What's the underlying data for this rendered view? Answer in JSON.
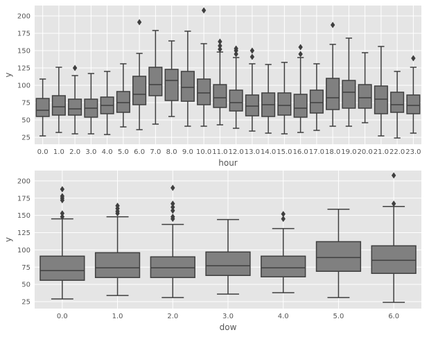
{
  "chart_data": [
    {
      "type": "box",
      "xlabel": "hour",
      "ylabel": "y",
      "ylim": [
        15,
        215
      ],
      "yticks": [
        25,
        50,
        75,
        100,
        125,
        150,
        175,
        200
      ],
      "grid": true,
      "box_color": "#808080",
      "line_color": "#3f3f3f",
      "categories": [
        "0.0",
        "1.0",
        "2.0",
        "3.0",
        "4.0",
        "5.0",
        "6.0",
        "7.0",
        "8.0",
        "9.0",
        "10.0",
        "11.0",
        "12.0",
        "13.0",
        "14.0",
        "15.0",
        "16.0",
        "17.0",
        "18.0",
        "19.0",
        "20.0",
        "21.0",
        "22.0",
        "23.0"
      ],
      "boxes": [
        {
          "whislo": 27,
          "q1": 55,
          "med": 64,
          "q3": 81,
          "whishi": 109,
          "fliers": []
        },
        {
          "whislo": 32,
          "q1": 57,
          "med": 69,
          "q3": 85,
          "whishi": 126,
          "fliers": []
        },
        {
          "whislo": 30,
          "q1": 57,
          "med": 66,
          "q3": 80,
          "whishi": 114,
          "fliers": [
            125
          ]
        },
        {
          "whislo": 30,
          "q1": 54,
          "med": 67,
          "q3": 80,
          "whishi": 117,
          "fliers": []
        },
        {
          "whislo": 29,
          "q1": 59,
          "med": 71,
          "q3": 83,
          "whishi": 120,
          "fliers": []
        },
        {
          "whislo": 40,
          "q1": 61,
          "med": 75,
          "q3": 91,
          "whishi": 131,
          "fliers": []
        },
        {
          "whislo": 36,
          "q1": 72,
          "med": 87,
          "q3": 113,
          "whishi": 146,
          "fliers": [
            191
          ]
        },
        {
          "whislo": 44,
          "q1": 85,
          "med": 101,
          "q3": 126,
          "whishi": 179,
          "fliers": []
        },
        {
          "whislo": 55,
          "q1": 78,
          "med": 107,
          "q3": 123,
          "whishi": 164,
          "fliers": []
        },
        {
          "whislo": 41,
          "q1": 77,
          "med": 97,
          "q3": 120,
          "whishi": 178,
          "fliers": []
        },
        {
          "whislo": 41,
          "q1": 72,
          "med": 89,
          "q3": 109,
          "whishi": 160,
          "fliers": [
            208
          ]
        },
        {
          "whislo": 43,
          "q1": 68,
          "med": 82,
          "q3": 101,
          "whishi": 148,
          "fliers": [
            152,
            157,
            163
          ]
        },
        {
          "whislo": 38,
          "q1": 63,
          "med": 75,
          "q3": 93,
          "whishi": 140,
          "fliers": [
            145,
            150,
            153
          ]
        },
        {
          "whislo": 34,
          "q1": 56,
          "med": 70,
          "q3": 86,
          "whishi": 131,
          "fliers": [
            141,
            150
          ]
        },
        {
          "whislo": 31,
          "q1": 55,
          "med": 72,
          "q3": 89,
          "whishi": 130,
          "fliers": []
        },
        {
          "whislo": 30,
          "q1": 57,
          "med": 71,
          "q3": 89,
          "whishi": 133,
          "fliers": []
        },
        {
          "whislo": 32,
          "q1": 54,
          "med": 67,
          "q3": 87,
          "whishi": 140,
          "fliers": [
            145,
            155
          ]
        },
        {
          "whislo": 35,
          "q1": 60,
          "med": 75,
          "q3": 93,
          "whishi": 131,
          "fliers": []
        },
        {
          "whislo": 41,
          "q1": 65,
          "med": 82,
          "q3": 110,
          "whishi": 159,
          "fliers": [
            187
          ]
        },
        {
          "whislo": 41,
          "q1": 67,
          "med": 90,
          "q3": 107,
          "whishi": 168,
          "fliers": []
        },
        {
          "whislo": 46,
          "q1": 67,
          "med": 82,
          "q3": 101,
          "whishi": 147,
          "fliers": []
        },
        {
          "whislo": 27,
          "q1": 59,
          "med": 80,
          "q3": 99,
          "whishi": 156,
          "fliers": []
        },
        {
          "whislo": 24,
          "q1": 61,
          "med": 72,
          "q3": 90,
          "whishi": 120,
          "fliers": []
        },
        {
          "whislo": 31,
          "q1": 59,
          "med": 71,
          "q3": 86,
          "whishi": 126,
          "fliers": [
            139
          ]
        }
      ]
    },
    {
      "type": "box",
      "xlabel": "dow",
      "ylabel": "y",
      "ylim": [
        15,
        215
      ],
      "yticks": [
        25,
        50,
        75,
        100,
        125,
        150,
        175,
        200
      ],
      "grid": true,
      "box_color": "#808080",
      "line_color": "#3f3f3f",
      "categories": [
        "0.0",
        "1.0",
        "2.0",
        "3.0",
        "4.0",
        "5.0",
        "6.0"
      ],
      "boxes": [
        {
          "whislo": 29,
          "q1": 56,
          "med": 70,
          "q3": 91,
          "whishi": 145,
          "fliers": [
            148,
            153,
            172,
            175,
            178,
            188
          ]
        },
        {
          "whislo": 34,
          "q1": 60,
          "med": 74,
          "q3": 96,
          "whishi": 148,
          "fliers": [
            153,
            156,
            160,
            164
          ]
        },
        {
          "whislo": 31,
          "q1": 60,
          "med": 74,
          "q3": 90,
          "whishi": 137,
          "fliers": [
            145,
            148,
            157,
            162,
            167,
            190
          ]
        },
        {
          "whislo": 36,
          "q1": 63,
          "med": 77,
          "q3": 97,
          "whishi": 144,
          "fliers": []
        },
        {
          "whislo": 38,
          "q1": 61,
          "med": 74,
          "q3": 91,
          "whishi": 131,
          "fliers": [
            145,
            152
          ]
        },
        {
          "whislo": 31,
          "q1": 69,
          "med": 89,
          "q3": 112,
          "whishi": 159,
          "fliers": []
        },
        {
          "whislo": 24,
          "q1": 66,
          "med": 85,
          "q3": 106,
          "whishi": 163,
          "fliers": [
            167,
            208
          ]
        }
      ]
    }
  ]
}
